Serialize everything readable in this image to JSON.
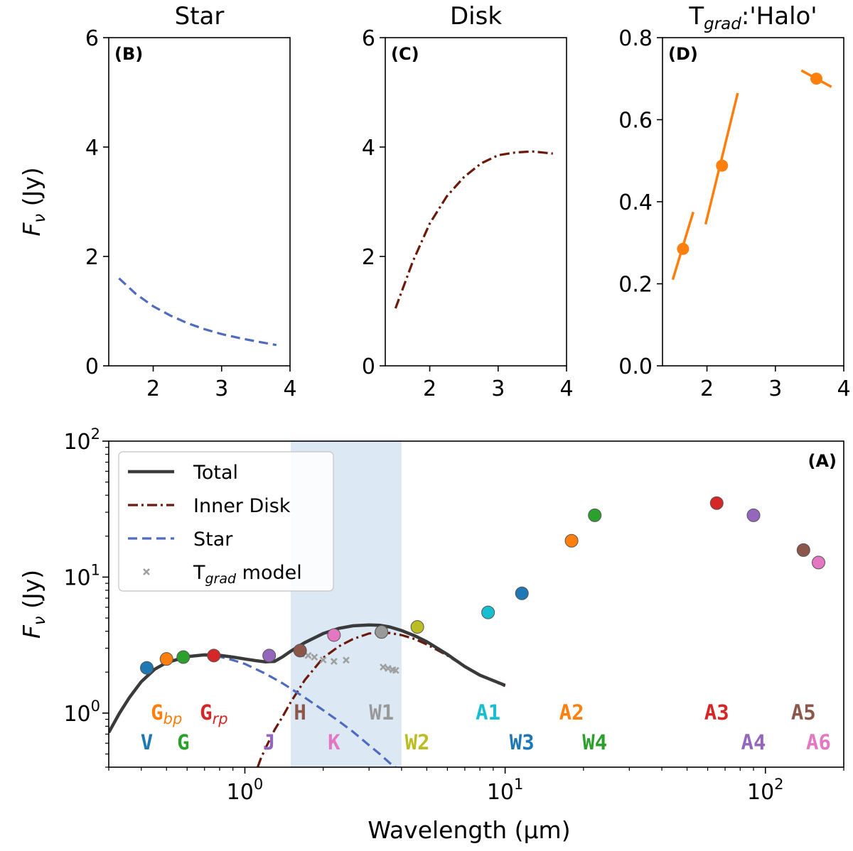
{
  "chart_data": [
    {
      "id": "B",
      "type": "line",
      "title": "Star",
      "panel_label": "(B)",
      "ylabel": "F_ν (Jy)",
      "xlim": [
        1.35,
        4.0
      ],
      "ylim": [
        0,
        6
      ],
      "xticks": [
        2,
        3,
        4
      ],
      "yticks": [
        0,
        2,
        4,
        6
      ],
      "series": [
        {
          "style": "dashed",
          "color": "#4f6bbf",
          "x": [
            1.5,
            1.75,
            2.0,
            2.25,
            2.5,
            2.75,
            3.0,
            3.25,
            3.5,
            3.8
          ],
          "y": [
            1.6,
            1.31,
            1.09,
            0.92,
            0.78,
            0.67,
            0.58,
            0.51,
            0.45,
            0.38
          ]
        }
      ]
    },
    {
      "id": "C",
      "type": "line",
      "title": "Disk",
      "panel_label": "(C)",
      "xlim": [
        1.35,
        4.0
      ],
      "ylim": [
        0,
        6
      ],
      "xticks": [
        2,
        3,
        4
      ],
      "yticks": [
        0,
        2,
        4,
        6
      ],
      "series": [
        {
          "style": "dashdot",
          "color": "#6b1a0a",
          "x": [
            1.5,
            1.75,
            2.0,
            2.25,
            2.5,
            2.75,
            3.0,
            3.25,
            3.5,
            3.8
          ],
          "y": [
            1.05,
            1.9,
            2.6,
            3.1,
            3.45,
            3.7,
            3.85,
            3.9,
            3.92,
            3.88
          ]
        }
      ]
    },
    {
      "id": "D",
      "type": "scatter",
      "title_main": "T",
      "title_sub": "grad",
      "title_tail": ":'Halo'",
      "panel_label": "(D)",
      "xlim": [
        1.35,
        4.0
      ],
      "ylim": [
        0,
        0.8
      ],
      "xticks": [
        2,
        3,
        4
      ],
      "yticks": [
        0.0,
        0.2,
        0.4,
        0.6,
        0.8
      ],
      "color": "#ff7f0e",
      "points": [
        {
          "x": 1.65,
          "y": 0.285,
          "seg": [
            [
              1.5,
              0.21
            ],
            [
              1.8,
              0.375
            ]
          ]
        },
        {
          "x": 2.22,
          "y": 0.488,
          "seg": [
            [
              1.98,
              0.345
            ],
            [
              2.45,
              0.665
            ]
          ]
        },
        {
          "x": 3.6,
          "y": 0.7,
          "seg": [
            [
              3.38,
              0.72
            ],
            [
              3.82,
              0.68
            ]
          ]
        }
      ]
    },
    {
      "id": "A",
      "type": "scatter",
      "panel_label": "(A)",
      "xlabel": "Wavelength (μm)",
      "ylabel": "F_ν (Jy)",
      "xscale": "log",
      "yscale": "log",
      "xlim": [
        0.3,
        200
      ],
      "ylim": [
        0.4,
        100
      ],
      "xtick_labels": [
        {
          "value": 1,
          "base": "10",
          "exp": "0"
        },
        {
          "value": 10,
          "base": "10",
          "exp": "1"
        },
        {
          "value": 100,
          "base": "10",
          "exp": "2"
        }
      ],
      "ytick_labels": [
        {
          "value": 1,
          "base": "10",
          "exp": "0"
        },
        {
          "value": 10,
          "base": "10",
          "exp": "1"
        },
        {
          "value": 100,
          "base": "10",
          "exp": "2"
        }
      ],
      "shaded_region": {
        "x": [
          1.5,
          4.0
        ],
        "color": "#dce9f5"
      },
      "legend": {
        "position": "top-left",
        "entries": [
          {
            "label": "Total",
            "style": "solid",
            "color": "#3a3a3a"
          },
          {
            "label": "Inner Disk",
            "style": "dashdot",
            "color": "#6b1a0a"
          },
          {
            "label": "Star",
            "style": "dashed",
            "color": "#4f6bbf"
          },
          {
            "label_main": "T",
            "label_sub": "grad",
            "label_tail": " model",
            "style": "marker-x",
            "color": "#a0a0a0"
          }
        ]
      },
      "curves": [
        {
          "name": "Total",
          "style": "solid",
          "color": "#3a3a3a",
          "x": [
            0.3,
            0.33,
            0.36,
            0.4,
            0.45,
            0.5,
            0.6,
            0.7,
            0.8,
            0.9,
            1.0,
            1.1,
            1.2,
            1.3,
            1.4,
            1.5,
            1.7,
            2.0,
            2.3,
            2.6,
            3.0,
            3.3,
            3.6,
            4.0,
            4.5,
            5.0,
            6.0,
            7.0,
            8.0,
            10.0
          ],
          "y": [
            0.72,
            1.0,
            1.3,
            1.7,
            2.1,
            2.35,
            2.6,
            2.68,
            2.66,
            2.58,
            2.5,
            2.43,
            2.38,
            2.4,
            2.6,
            2.85,
            3.3,
            3.85,
            4.2,
            4.38,
            4.45,
            4.42,
            4.3,
            4.05,
            3.7,
            3.35,
            2.7,
            2.2,
            1.9,
            1.6
          ]
        },
        {
          "name": "Inner Disk",
          "style": "dashdot",
          "color": "#6b1a0a",
          "x": [
            1.12,
            1.15,
            1.2,
            1.3,
            1.4,
            1.5,
            1.7,
            2.0,
            2.3,
            2.6,
            3.0,
            3.3,
            3.6,
            4.0,
            4.5,
            5.0,
            6.0,
            7.0,
            8.0,
            10.0
          ],
          "y": [
            0.4,
            0.46,
            0.55,
            0.75,
            0.95,
            1.2,
            1.75,
            2.55,
            3.1,
            3.5,
            3.85,
            3.9,
            3.88,
            3.75,
            3.5,
            3.2,
            2.65,
            2.2,
            1.9,
            1.58
          ]
        },
        {
          "name": "Star",
          "style": "dashed",
          "color": "#4f6bbf",
          "x": [
            0.3,
            0.33,
            0.36,
            0.4,
            0.45,
            0.5,
            0.6,
            0.7,
            0.8,
            0.9,
            1.0,
            1.2,
            1.4,
            1.7,
            2.0,
            2.3,
            2.6,
            3.0,
            3.3,
            3.6,
            3.8
          ],
          "y": [
            0.72,
            1.0,
            1.3,
            1.7,
            2.1,
            2.35,
            2.6,
            2.66,
            2.6,
            2.45,
            2.3,
            1.95,
            1.65,
            1.3,
            1.05,
            0.87,
            0.73,
            0.58,
            0.5,
            0.43,
            0.4
          ]
        }
      ],
      "model_points": [
        {
          "x": 1.65,
          "y": 2.72
        },
        {
          "x": 1.75,
          "y": 2.65
        },
        {
          "x": 1.85,
          "y": 2.58
        },
        {
          "x": 2.0,
          "y": 2.46
        },
        {
          "x": 2.2,
          "y": 2.4
        },
        {
          "x": 2.45,
          "y": 2.45
        },
        {
          "x": 3.4,
          "y": 2.18
        },
        {
          "x": 3.55,
          "y": 2.13
        },
        {
          "x": 3.7,
          "y": 2.08
        },
        {
          "x": 3.8,
          "y": 2.06
        }
      ],
      "photometry": [
        {
          "band": "V",
          "x": 0.42,
          "y": 2.15,
          "color": "#1f77b4"
        },
        {
          "band": "Gbp",
          "x": 0.5,
          "y": 2.5,
          "color": "#ff7f0e"
        },
        {
          "band": "G",
          "x": 0.58,
          "y": 2.58,
          "color": "#2ca02c"
        },
        {
          "band": "Grp",
          "x": 0.76,
          "y": 2.65,
          "color": "#d62728"
        },
        {
          "band": "J",
          "x": 1.24,
          "y": 2.65,
          "color": "#9467bd"
        },
        {
          "band": "H",
          "x": 1.63,
          "y": 2.88,
          "color": "#8c564b"
        },
        {
          "band": "K",
          "x": 2.2,
          "y": 3.75,
          "color": "#e377c2"
        },
        {
          "band": "W1",
          "x": 3.35,
          "y": 3.95,
          "color": "#999999"
        },
        {
          "band": "W2",
          "x": 4.6,
          "y": 4.3,
          "color": "#bcbd22"
        },
        {
          "band": "A1",
          "x": 8.6,
          "y": 5.5,
          "color": "#17becf"
        },
        {
          "band": "W3",
          "x": 11.6,
          "y": 7.6,
          "color": "#1f77b4"
        },
        {
          "band": "A2",
          "x": 18.0,
          "y": 18.5,
          "color": "#ff7f0e"
        },
        {
          "band": "W4",
          "x": 22.1,
          "y": 28.5,
          "color": "#2ca02c"
        },
        {
          "band": "A3",
          "x": 65.0,
          "y": 35.0,
          "color": "#d62728"
        },
        {
          "band": "A4",
          "x": 90.0,
          "y": 28.5,
          "color": "#9467bd"
        },
        {
          "band": "A5",
          "x": 140.0,
          "y": 15.8,
          "color": "#8c564b"
        },
        {
          "band": "A6",
          "x": 160.0,
          "y": 12.8,
          "color": "#e377c2"
        }
      ],
      "band_labels": [
        {
          "main": "V",
          "sub": "",
          "x": 0.42,
          "row": 2,
          "color": "#1f77b4"
        },
        {
          "main": "G",
          "sub": "bp",
          "x": 0.5,
          "row": 1,
          "color": "#ff7f0e"
        },
        {
          "main": "G",
          "sub": "",
          "x": 0.58,
          "row": 2,
          "color": "#2ca02c"
        },
        {
          "main": "G",
          "sub": "rp",
          "x": 0.76,
          "row": 1,
          "color": "#d62728"
        },
        {
          "main": "J",
          "sub": "",
          "x": 1.24,
          "row": 2,
          "color": "#9467bd"
        },
        {
          "main": "H",
          "sub": "",
          "x": 1.63,
          "row": 1,
          "color": "#8c564b"
        },
        {
          "main": "K",
          "sub": "",
          "x": 2.2,
          "row": 2,
          "color": "#e377c2"
        },
        {
          "main": "W1",
          "sub": "",
          "x": 3.35,
          "row": 1,
          "color": "#999999"
        },
        {
          "main": "W2",
          "sub": "",
          "x": 4.6,
          "row": 2,
          "color": "#bcbd22"
        },
        {
          "main": "A1",
          "sub": "",
          "x": 8.6,
          "row": 1,
          "color": "#17becf"
        },
        {
          "main": "W3",
          "sub": "",
          "x": 11.6,
          "row": 2,
          "color": "#1f77b4"
        },
        {
          "main": "A2",
          "sub": "",
          "x": 18.0,
          "row": 1,
          "color": "#ff7f0e"
        },
        {
          "main": "W4",
          "sub": "",
          "x": 22.1,
          "row": 2,
          "color": "#2ca02c"
        },
        {
          "main": "A3",
          "sub": "",
          "x": 65.0,
          "row": 1,
          "color": "#d62728"
        },
        {
          "main": "A4",
          "sub": "",
          "x": 90.0,
          "row": 2,
          "color": "#9467bd"
        },
        {
          "main": "A5",
          "sub": "",
          "x": 140.0,
          "row": 1,
          "color": "#8c564b"
        },
        {
          "main": "A6",
          "sub": "",
          "x": 160.0,
          "row": 2,
          "color": "#e377c2"
        }
      ]
    }
  ]
}
